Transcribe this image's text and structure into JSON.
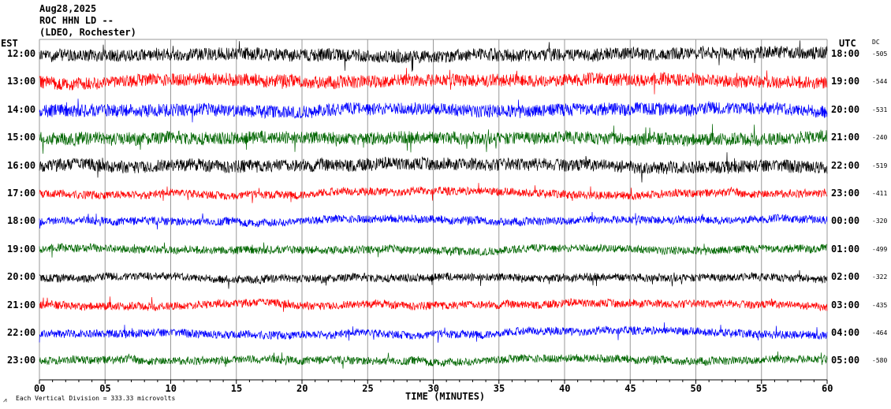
{
  "header": {
    "date": "Aug28,2025",
    "station": "ROC HHN LD --",
    "network": "(LDEO, Rochester)"
  },
  "left_axis_title": "EST",
  "right_axis_title": "UTC",
  "dc_title": "DC",
  "footer": {
    "mark": "⩘",
    "scale_note": "Each Vertical Division =  333.33 microvolts"
  },
  "chart_data": {
    "type": "line",
    "title": "Aug28,2025 ROC HHN LD -- (LDEO, Rochester)",
    "xlabel": "TIME (MINUTES)",
    "xlim": [
      0,
      60
    ],
    "x_ticks": [
      "00",
      "05",
      "10",
      "15",
      "20",
      "25",
      "30",
      "35",
      "40",
      "45",
      "50",
      "55",
      "60"
    ],
    "grid": true,
    "series": [
      {
        "est": "12:00",
        "utc": "18:00",
        "dc": "-505",
        "color": "#000000"
      },
      {
        "est": "13:00",
        "utc": "19:00",
        "dc": "-544",
        "color": "#ff0000"
      },
      {
        "est": "14:00",
        "utc": "20:00",
        "dc": "-531",
        "color": "#0000ff"
      },
      {
        "est": "15:00",
        "utc": "21:00",
        "dc": "-240",
        "color": "#006600"
      },
      {
        "est": "16:00",
        "utc": "22:00",
        "dc": "-519",
        "color": "#000000"
      },
      {
        "est": "17:00",
        "utc": "23:00",
        "dc": "-411",
        "color": "#ff0000"
      },
      {
        "est": "18:00",
        "utc": "00:00",
        "dc": "-320",
        "color": "#0000ff"
      },
      {
        "est": "19:00",
        "utc": "01:00",
        "dc": "-499",
        "color": "#006600"
      },
      {
        "est": "20:00",
        "utc": "02:00",
        "dc": "-322",
        "color": "#000000"
      },
      {
        "est": "21:00",
        "utc": "03:00",
        "dc": "-435",
        "color": "#ff0000"
      },
      {
        "est": "22:00",
        "utc": "04:00",
        "dc": "-464",
        "color": "#0000ff"
      },
      {
        "est": "23:00",
        "utc": "05:00",
        "dc": "-580",
        "color": "#006600"
      }
    ]
  }
}
